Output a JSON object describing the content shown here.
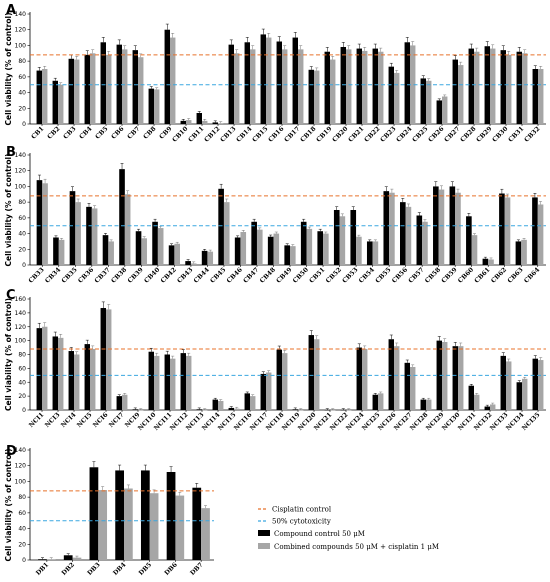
{
  "colors": {
    "compound": "#000000",
    "combined": "#a6a6a6",
    "cisplatin_line": "#e8712a",
    "cyto_line": "#3aa7e0"
  },
  "legend": {
    "cisplatin": "Cisplatin control",
    "cyto": "50% cytotoxicity",
    "compound": "Compound control 50 μM",
    "combined": "Combined compounds 50 μM + cisplatin 1 μM"
  },
  "chart_data": [
    {
      "type": "bar",
      "panel": "A",
      "ylabel": "Cell viability (% of control)",
      "ylim": [
        0,
        140
      ],
      "yticks": [
        0,
        20,
        40,
        60,
        80,
        100,
        120,
        140
      ],
      "ref_lines": {
        "cisplatin": 88,
        "cyto": 50
      },
      "categories": [
        "CB1",
        "CB2",
        "CB3",
        "CB4",
        "CB5",
        "CB6",
        "CB7",
        "CB8",
        "CB9",
        "CB10",
        "CB11",
        "CB12",
        "CB13",
        "CB14",
        "CB15",
        "CB16",
        "CB17",
        "CB18",
        "CB19",
        "CB20",
        "CB21",
        "CB22",
        "CB23",
        "CB24",
        "CB25",
        "CB26",
        "CB27",
        "CB28",
        "CB29",
        "CB30",
        "CB31",
        "CB32"
      ],
      "series": [
        {
          "values": [
            68,
            55,
            83,
            88,
            104,
            101,
            94,
            45,
            120,
            4,
            14,
            2,
            101,
            104,
            114,
            105,
            110,
            69,
            92,
            98,
            96,
            96,
            73,
            104,
            58,
            30,
            82,
            96,
            99,
            94,
            92,
            70
          ]
        },
        {
          "values": [
            70,
            50,
            82,
            90,
            88,
            95,
            85,
            44,
            110,
            5,
            4,
            1,
            90,
            95,
            110,
            95,
            95,
            68,
            82,
            95,
            93,
            92,
            65,
            100,
            55,
            35,
            75,
            92,
            96,
            88,
            90,
            70
          ]
        }
      ]
    },
    {
      "type": "bar",
      "panel": "B",
      "ylabel": "Cell viability (% of control)",
      "ylim": [
        0,
        140
      ],
      "yticks": [
        0,
        20,
        40,
        60,
        80,
        100,
        120,
        140
      ],
      "ref_lines": {
        "cisplatin": 88,
        "cyto": 50
      },
      "categories": [
        "CB33",
        "CB34",
        "CB35",
        "CB36",
        "CB37",
        "CB38",
        "CB39",
        "CB40",
        "CB42",
        "CB43",
        "CB44",
        "CB45",
        "CB46",
        "CB47",
        "CB48",
        "CB49",
        "CB50",
        "CB51",
        "CB52",
        "CB53",
        "CB54",
        "CB55",
        "CB56",
        "CB57",
        "CB58",
        "CB59",
        "CB60",
        "CB61",
        "CB62",
        "CB63",
        "CB64"
      ],
      "series": [
        {
          "values": [
            108,
            35,
            94,
            74,
            38,
            122,
            43,
            55,
            25,
            5,
            18,
            97,
            35,
            55,
            36,
            25,
            55,
            43,
            70,
            70,
            30,
            94,
            80,
            63,
            100,
            100,
            62,
            8,
            91,
            30,
            86
          ]
        },
        {
          "values": [
            104,
            32,
            80,
            72,
            30,
            90,
            34,
            47,
            27,
            2,
            17,
            80,
            42,
            45,
            40,
            24,
            46,
            40,
            62,
            36,
            30,
            92,
            74,
            55,
            96,
            92,
            38,
            7,
            86,
            32,
            77
          ]
        }
      ]
    },
    {
      "type": "bar",
      "panel": "C",
      "ylabel": "Cell viability (% of control)",
      "ylim": [
        0,
        160
      ],
      "yticks": [
        0,
        20,
        40,
        60,
        80,
        100,
        120,
        140,
        160
      ],
      "ref_lines": {
        "cisplatin": 88,
        "cyto": 50
      },
      "categories": [
        "NCI1",
        "NCI3",
        "NCI4",
        "NCI5",
        "NCI6",
        "NCI7",
        "NCI9",
        "NCI10",
        "NCI11",
        "NCI12",
        "NCI13",
        "NCI14",
        "NCI15",
        "NCI16",
        "NCI17",
        "NCI18",
        "NCI19",
        "NCI20",
        "NCI21",
        "NCI22",
        "NCI24",
        "NCI25",
        "NCI26",
        "NCI27",
        "NCI28",
        "NCI29",
        "NCI30",
        "NCI31",
        "NCI32",
        "NCI33",
        "NCI34",
        "NCI35"
      ],
      "series": [
        {
          "values": [
            118,
            106,
            85,
            95,
            147,
            20,
            1,
            84,
            80,
            82,
            1,
            15,
            3,
            24,
            52,
            87,
            1,
            108,
            0,
            0,
            90,
            22,
            102,
            68,
            15,
            100,
            92,
            35,
            5,
            78,
            40,
            74
          ]
        },
        {
          "values": [
            120,
            104,
            80,
            88,
            145,
            22,
            0,
            78,
            74,
            78,
            0,
            13,
            2,
            20,
            54,
            82,
            0,
            102,
            0,
            0,
            88,
            24,
            92,
            62,
            15,
            98,
            92,
            22,
            8,
            70,
            45,
            72
          ]
        }
      ]
    },
    {
      "type": "bar",
      "panel": "D",
      "ylabel": "Cell viability (% of control)",
      "ylim": [
        0,
        140
      ],
      "yticks": [
        0,
        20,
        40,
        60,
        80,
        100,
        120,
        140
      ],
      "ref_lines": {
        "cisplatin": 88,
        "cyto": 50
      },
      "categories": [
        "DB1",
        "DB2",
        "DB3",
        "DB4",
        "DB5",
        "DB6",
        "DB7"
      ],
      "series": [
        {
          "values": [
            1,
            6,
            118,
            114,
            114,
            112,
            92
          ]
        },
        {
          "values": [
            1,
            3,
            89,
            91,
            85,
            82,
            66
          ]
        }
      ]
    }
  ]
}
